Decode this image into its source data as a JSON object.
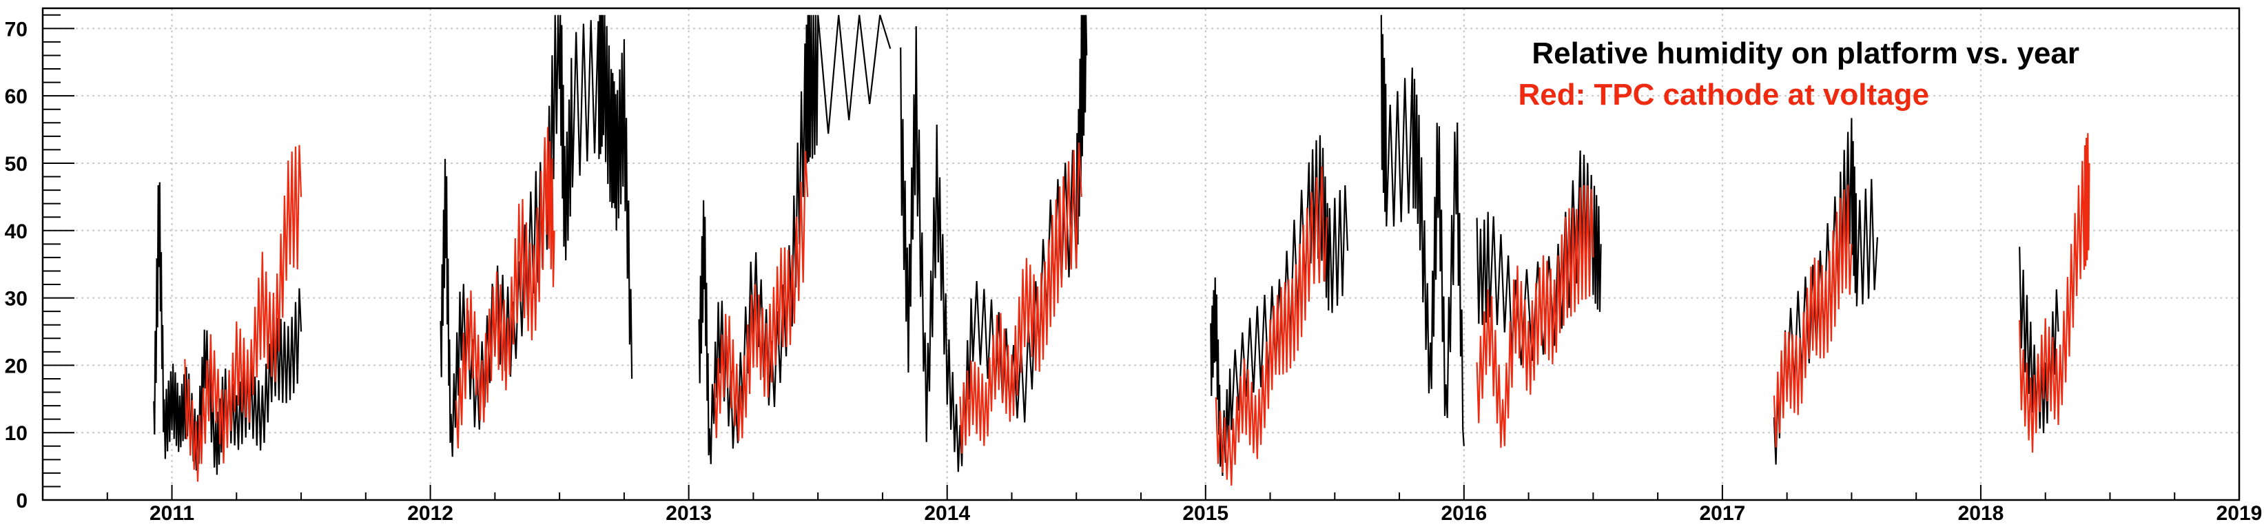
{
  "chart_data": {
    "type": "line",
    "title": "Relative humidity on platform vs. year",
    "subtitle": "Red: TPC cathode at voltage",
    "xlabel": "",
    "ylabel": "",
    "xlim": [
      2010.5,
      2019.0
    ],
    "ylim": [
      0,
      73
    ],
    "grid": true,
    "x_ticks": [
      "2011",
      "2012",
      "2013",
      "2014",
      "2015",
      "2016",
      "2017",
      "2018",
      "2019"
    ],
    "y_ticks": [
      "0",
      "10",
      "20",
      "30",
      "40",
      "50",
      "60",
      "70"
    ],
    "series": [
      {
        "color": "#000000",
        "segments": [
          {
            "x0": 2010.93,
            "x1": 2011.5,
            "points": [
              [
                2010.93,
                12
              ],
              [
                2010.95,
                42
              ],
              [
                2010.97,
                10
              ],
              [
                2011.0,
                17
              ],
              [
                2011.03,
                10
              ],
              [
                2011.06,
                15
              ],
              [
                2011.1,
                9
              ],
              [
                2011.13,
                20
              ],
              [
                2011.17,
                8
              ],
              [
                2011.2,
                15
              ],
              [
                2011.25,
                10
              ],
              [
                2011.3,
                17
              ],
              [
                2011.35,
                12
              ],
              [
                2011.4,
                20
              ],
              [
                2011.45,
                22
              ],
              [
                2011.5,
                25
              ]
            ]
          },
          {
            "x0": 2012.04,
            "x1": 2012.78,
            "points": [
              [
                2012.04,
                20
              ],
              [
                2012.06,
                44
              ],
              [
                2012.08,
                10
              ],
              [
                2012.12,
                26
              ],
              [
                2012.18,
                14
              ],
              [
                2012.25,
                30
              ],
              [
                2012.32,
                22
              ],
              [
                2012.4,
                40
              ],
              [
                2012.46,
                50
              ],
              [
                2012.5,
                68
              ],
              [
                2012.52,
                45
              ],
              [
                2012.55,
                58
              ],
              [
                2012.65,
                58
              ],
              [
                2012.67,
                69
              ],
              [
                2012.7,
                53
              ],
              [
                2012.72,
                48
              ],
              [
                2012.75,
                62
              ],
              [
                2012.78,
                18
              ]
            ]
          },
          {
            "x0": 2013.04,
            "x1": 2013.78,
            "points": [
              [
                2013.04,
                20
              ],
              [
                2013.06,
                42
              ],
              [
                2013.08,
                6
              ],
              [
                2013.12,
                25
              ],
              [
                2013.18,
                12
              ],
              [
                2013.25,
                30
              ],
              [
                2013.32,
                18
              ],
              [
                2013.4,
                35
              ],
              [
                2013.45,
                55
              ],
              [
                2013.47,
                64
              ],
              [
                2013.5,
                67
              ],
              [
                2013.78,
                67
              ]
            ]
          },
          {
            "x0": 2013.82,
            "x1": 2014.54,
            "points": [
              [
                2013.82,
                60
              ],
              [
                2013.85,
                25
              ],
              [
                2013.88,
                58
              ],
              [
                2013.92,
                15
              ],
              [
                2013.96,
                45
              ],
              [
                2014.0,
                20
              ],
              [
                2014.05,
                8
              ],
              [
                2014.1,
                25
              ],
              [
                2014.2,
                22
              ],
              [
                2014.3,
                18
              ],
              [
                2014.4,
                35
              ],
              [
                2014.5,
                45
              ],
              [
                2014.52,
                62
              ],
              [
                2014.54,
                66
              ]
            ]
          },
          {
            "x0": 2015.02,
            "x1": 2015.55,
            "points": [
              [
                2015.02,
                20
              ],
              [
                2015.04,
                26
              ],
              [
                2015.06,
                8
              ],
              [
                2015.1,
                15
              ],
              [
                2015.2,
                22
              ],
              [
                2015.3,
                30
              ],
              [
                2015.4,
                40
              ],
              [
                2015.45,
                45
              ],
              [
                2015.48,
                37
              ],
              [
                2015.55,
                37
              ]
            ]
          },
          {
            "x0": 2015.68,
            "x1": 2016.0,
            "points": [
              [
                2015.68,
                59
              ],
              [
                2015.7,
                53
              ],
              [
                2015.8,
                53
              ],
              [
                2015.83,
                45
              ],
              [
                2015.87,
                20
              ],
              [
                2015.9,
                50
              ],
              [
                2015.93,
                12
              ],
              [
                2015.97,
                55
              ],
              [
                2016.0,
                8
              ]
            ]
          },
          {
            "x0": 2016.05,
            "x1": 2016.53,
            "points": [
              [
                2016.05,
                36
              ],
              [
                2016.1,
                35
              ],
              [
                2016.2,
                25
              ],
              [
                2016.35,
                32
              ],
              [
                2016.45,
                42
              ],
              [
                2016.5,
                38
              ],
              [
                2016.53,
                38
              ]
            ]
          },
          {
            "x0": 2017.2,
            "x1": 2017.6,
            "points": [
              [
                2017.2,
                8
              ],
              [
                2017.25,
                20
              ],
              [
                2017.35,
                30
              ],
              [
                2017.45,
                38
              ],
              [
                2017.5,
                46
              ],
              [
                2017.52,
                39
              ],
              [
                2017.6,
                39
              ]
            ]
          },
          {
            "x0": 2018.15,
            "x1": 2018.3,
            "points": [
              [
                2018.15,
                29
              ],
              [
                2018.2,
                20
              ],
              [
                2018.25,
                15
              ],
              [
                2018.3,
                25
              ]
            ]
          }
        ]
      },
      {
        "color": "#ee2a10",
        "segments": [
          {
            "x0": 2011.05,
            "x1": 2011.5,
            "points": [
              [
                2011.05,
                15
              ],
              [
                2011.1,
                8
              ],
              [
                2011.15,
                18
              ],
              [
                2011.2,
                10
              ],
              [
                2011.25,
                22
              ],
              [
                2011.3,
                15
              ],
              [
                2011.35,
                30
              ],
              [
                2011.4,
                25
              ],
              [
                2011.45,
                40
              ],
              [
                2011.5,
                45
              ]
            ]
          },
          {
            "x0": 2012.1,
            "x1": 2012.48,
            "points": [
              [
                2012.1,
                12
              ],
              [
                2012.15,
                25
              ],
              [
                2012.2,
                15
              ],
              [
                2012.25,
                30
              ],
              [
                2012.3,
                20
              ],
              [
                2012.35,
                38
              ],
              [
                2012.4,
                32
              ],
              [
                2012.45,
                45
              ],
              [
                2012.48,
                40
              ]
            ]
          },
          {
            "x0": 2013.1,
            "x1": 2013.46,
            "points": [
              [
                2013.1,
                12
              ],
              [
                2013.15,
                22
              ],
              [
                2013.2,
                14
              ],
              [
                2013.25,
                25
              ],
              [
                2013.3,
                20
              ],
              [
                2013.35,
                32
              ],
              [
                2013.4,
                28
              ],
              [
                2013.46,
                45
              ]
            ]
          },
          {
            "x0": 2014.05,
            "x1": 2014.52,
            "points": [
              [
                2014.05,
                10
              ],
              [
                2014.1,
                18
              ],
              [
                2014.15,
                12
              ],
              [
                2014.2,
                22
              ],
              [
                2014.25,
                18
              ],
              [
                2014.3,
                28
              ],
              [
                2014.35,
                25
              ],
              [
                2014.4,
                35
              ],
              [
                2014.45,
                38
              ],
              [
                2014.52,
                45
              ]
            ]
          },
          {
            "x0": 2015.04,
            "x1": 2015.47,
            "points": [
              [
                2015.04,
                12
              ],
              [
                2015.1,
                6
              ],
              [
                2015.15,
                15
              ],
              [
                2015.2,
                12
              ],
              [
                2015.25,
                20
              ],
              [
                2015.3,
                25
              ],
              [
                2015.35,
                30
              ],
              [
                2015.4,
                35
              ],
              [
                2015.47,
                42
              ]
            ]
          },
          {
            "x0": 2016.05,
            "x1": 2016.5,
            "points": [
              [
                2016.05,
                15
              ],
              [
                2016.1,
                25
              ],
              [
                2016.15,
                12
              ],
              [
                2016.2,
                28
              ],
              [
                2016.25,
                20
              ],
              [
                2016.3,
                32
              ],
              [
                2016.35,
                25
              ],
              [
                2016.4,
                35
              ],
              [
                2016.45,
                40
              ],
              [
                2016.5,
                36
              ]
            ]
          },
          {
            "x0": 2017.2,
            "x1": 2017.5,
            "points": [
              [
                2017.2,
                10
              ],
              [
                2017.25,
                22
              ],
              [
                2017.3,
                18
              ],
              [
                2017.35,
                28
              ],
              [
                2017.4,
                30
              ],
              [
                2017.45,
                35
              ],
              [
                2017.5,
                38
              ]
            ]
          },
          {
            "x0": 2018.15,
            "x1": 2018.42,
            "points": [
              [
                2018.15,
                22
              ],
              [
                2018.2,
                12
              ],
              [
                2018.25,
                20
              ],
              [
                2018.3,
                18
              ],
              [
                2018.35,
                30
              ],
              [
                2018.4,
                42
              ],
              [
                2018.42,
                50
              ]
            ]
          }
        ]
      }
    ]
  }
}
